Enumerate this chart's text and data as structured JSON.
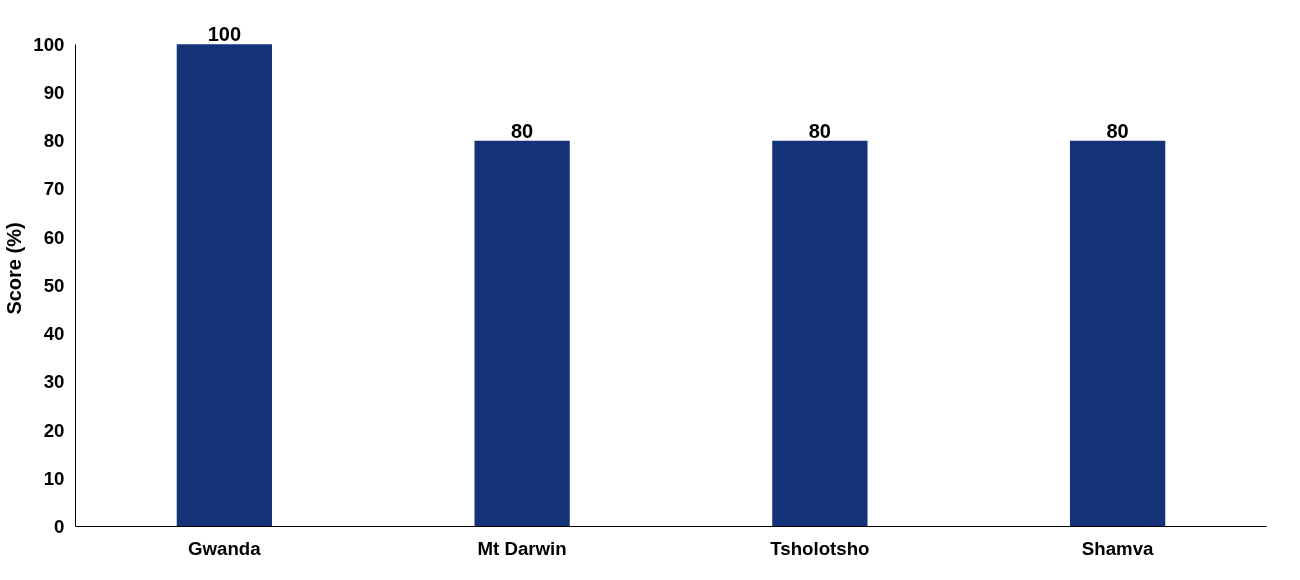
{
  "chart_data": {
    "type": "bar",
    "ylabel": "Score (%)",
    "categories": [
      "Gwanda",
      "Mt Darwin",
      "Tsholotsho",
      "Shamva"
    ],
    "values": [
      100,
      80,
      80,
      80
    ],
    "color": "#133278",
    "ylim": [
      0,
      100
    ],
    "yticks": [
      0,
      10,
      20,
      30,
      40,
      50,
      60,
      70,
      80,
      90,
      100
    ],
    "grid": false,
    "data_labels": true
  }
}
